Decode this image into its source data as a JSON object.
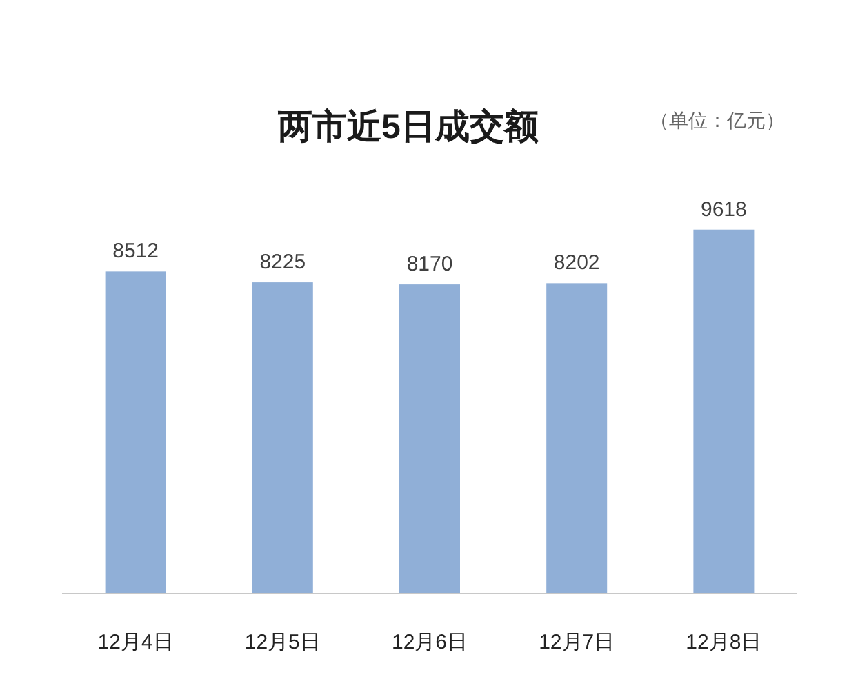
{
  "chart_data": {
    "type": "bar",
    "title": "两市近5日成交额",
    "annotations": [
      "（单位：亿元）"
    ],
    "categories": [
      "12月4日",
      "12月5日",
      "12月6日",
      "12月7日",
      "12月8日"
    ],
    "values": [
      8512,
      8225,
      8170,
      8202,
      9618
    ],
    "color": "#90afd7",
    "data_labels": true
  }
}
